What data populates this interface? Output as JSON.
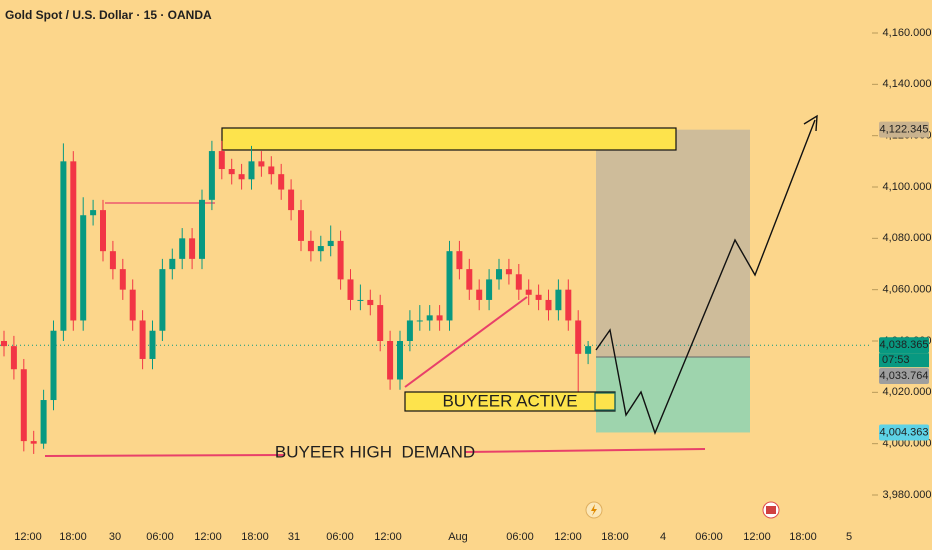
{
  "chart_data": {
    "type": "candlestick",
    "title": "Gold Spot / U.S. Dollar · 15 · OANDA",
    "up_color": "#089981",
    "down_color": "#f23645",
    "candles": [
      [
        4040,
        4044,
        4034,
        4038
      ],
      [
        4038,
        4042,
        4025,
        4029
      ],
      [
        4029,
        4033,
        3997,
        4001
      ],
      [
        4001,
        4005,
        3996,
        4000
      ],
      [
        4000,
        4021,
        3998,
        4017
      ],
      [
        4017,
        4048,
        4013,
        4044
      ],
      [
        4044,
        4117,
        4040,
        4110
      ],
      [
        4110,
        4114,
        4044,
        4048
      ],
      [
        4048,
        4096,
        4044,
        4089
      ],
      [
        4089,
        4095,
        4085,
        4091
      ],
      [
        4091,
        4095,
        4071,
        4075
      ],
      [
        4075,
        4079,
        4064,
        4068
      ],
      [
        4068,
        4072,
        4056,
        4060
      ],
      [
        4060,
        4064,
        4044,
        4048
      ],
      [
        4048,
        4052,
        4029,
        4033
      ],
      [
        4033,
        4048,
        4029,
        4044
      ],
      [
        4044,
        4072,
        4040,
        4068
      ],
      [
        4068,
        4076,
        4064,
        4072
      ],
      [
        4072,
        4084,
        4068,
        4080
      ],
      [
        4080,
        4084,
        4068,
        4072
      ],
      [
        4072,
        4099,
        4068,
        4095
      ],
      [
        4095,
        4118,
        4091,
        4114
      ],
      [
        4114,
        4118,
        4103,
        4107
      ],
      [
        4107,
        4111,
        4101,
        4105
      ],
      [
        4105,
        4109,
        4099,
        4103
      ],
      [
        4103,
        4116,
        4099,
        4110
      ],
      [
        4110,
        4114,
        4104,
        4108
      ],
      [
        4108,
        4112,
        4101,
        4105
      ],
      [
        4105,
        4109,
        4095,
        4099
      ],
      [
        4099,
        4103,
        4087,
        4091
      ],
      [
        4091,
        4095,
        4075,
        4079
      ],
      [
        4079,
        4083,
        4071,
        4075
      ],
      [
        4075,
        4081,
        4071,
        4077
      ],
      [
        4077,
        4085,
        4073,
        4079
      ],
      [
        4079,
        4083,
        4060,
        4064
      ],
      [
        4064,
        4068,
        4052,
        4056
      ],
      [
        4056,
        4062,
        4052,
        4056
      ],
      [
        4056,
        4060,
        4050,
        4054
      ],
      [
        4054,
        4058,
        4036,
        4040
      ],
      [
        4040,
        4044,
        4021,
        4025
      ],
      [
        4025,
        4044,
        4021,
        4040
      ],
      [
        4040,
        4052,
        4036,
        4048
      ],
      [
        4048,
        4054,
        4044,
        4048
      ],
      [
        4048,
        4054,
        4044,
        4050
      ],
      [
        4050,
        4054,
        4044,
        4048
      ],
      [
        4048,
        4079,
        4044,
        4075
      ],
      [
        4075,
        4079,
        4064,
        4068
      ],
      [
        4068,
        4072,
        4056,
        4060
      ],
      [
        4060,
        4064,
        4052,
        4056
      ],
      [
        4056,
        4068,
        4052,
        4064
      ],
      [
        4064,
        4072,
        4060,
        4068
      ],
      [
        4068,
        4072,
        4062,
        4066
      ],
      [
        4066,
        4070,
        4056,
        4060
      ],
      [
        4060,
        4064,
        4054,
        4058
      ],
      [
        4058,
        4062,
        4052,
        4056
      ],
      [
        4056,
        4060,
        4048,
        4052
      ],
      [
        4052,
        4064,
        4048,
        4060
      ],
      [
        4060,
        4064,
        4044,
        4048
      ],
      [
        4048,
        4052,
        4020,
        4035
      ],
      [
        4035,
        4040,
        4031,
        4038
      ]
    ],
    "x_tick_labels": [
      "12:00",
      "18:00",
      "30",
      "06:00",
      "12:00",
      "18:00",
      "31",
      "06:00",
      "12:00",
      "Aug",
      "06:00",
      "12:00",
      "18:00",
      "4",
      "06:00",
      "12:00",
      "18:00",
      "5"
    ],
    "ylim": [
      3980,
      4160
    ],
    "yticks": [
      {
        "value": 3980,
        "label": "3,980.000"
      },
      {
        "value": 4000,
        "label": "4,000.000"
      },
      {
        "value": 4020,
        "label": "4,020.000"
      },
      {
        "value": 4040,
        "label": "4,040.000"
      },
      {
        "value": 4060,
        "label": "4,060.000"
      },
      {
        "value": 4080,
        "label": "4,080.000"
      },
      {
        "value": 4100,
        "label": "4,100.000"
      },
      {
        "value": 4120,
        "label": "4,120.000"
      },
      {
        "value": 4140,
        "label": "4,140.000"
      },
      {
        "value": 4160,
        "label": "4,160.000"
      }
    ],
    "target": {
      "value": 4122.345,
      "label": "4,122.345",
      "color": "#c9b28e"
    },
    "current": {
      "value": 4038.365,
      "label": "4,038.365",
      "color": "#089981",
      "countdown": "07:53"
    },
    "entry": {
      "value": 4033.764,
      "label": "4,033.764",
      "color": "#9e9e9e"
    },
    "stop": {
      "value": 4004.363,
      "label": "4,004.363",
      "color": "#5dd2e6"
    },
    "annotations": [
      "BUYEER ACTIVE",
      "BUYEER HIGH  DEMAND"
    ]
  }
}
